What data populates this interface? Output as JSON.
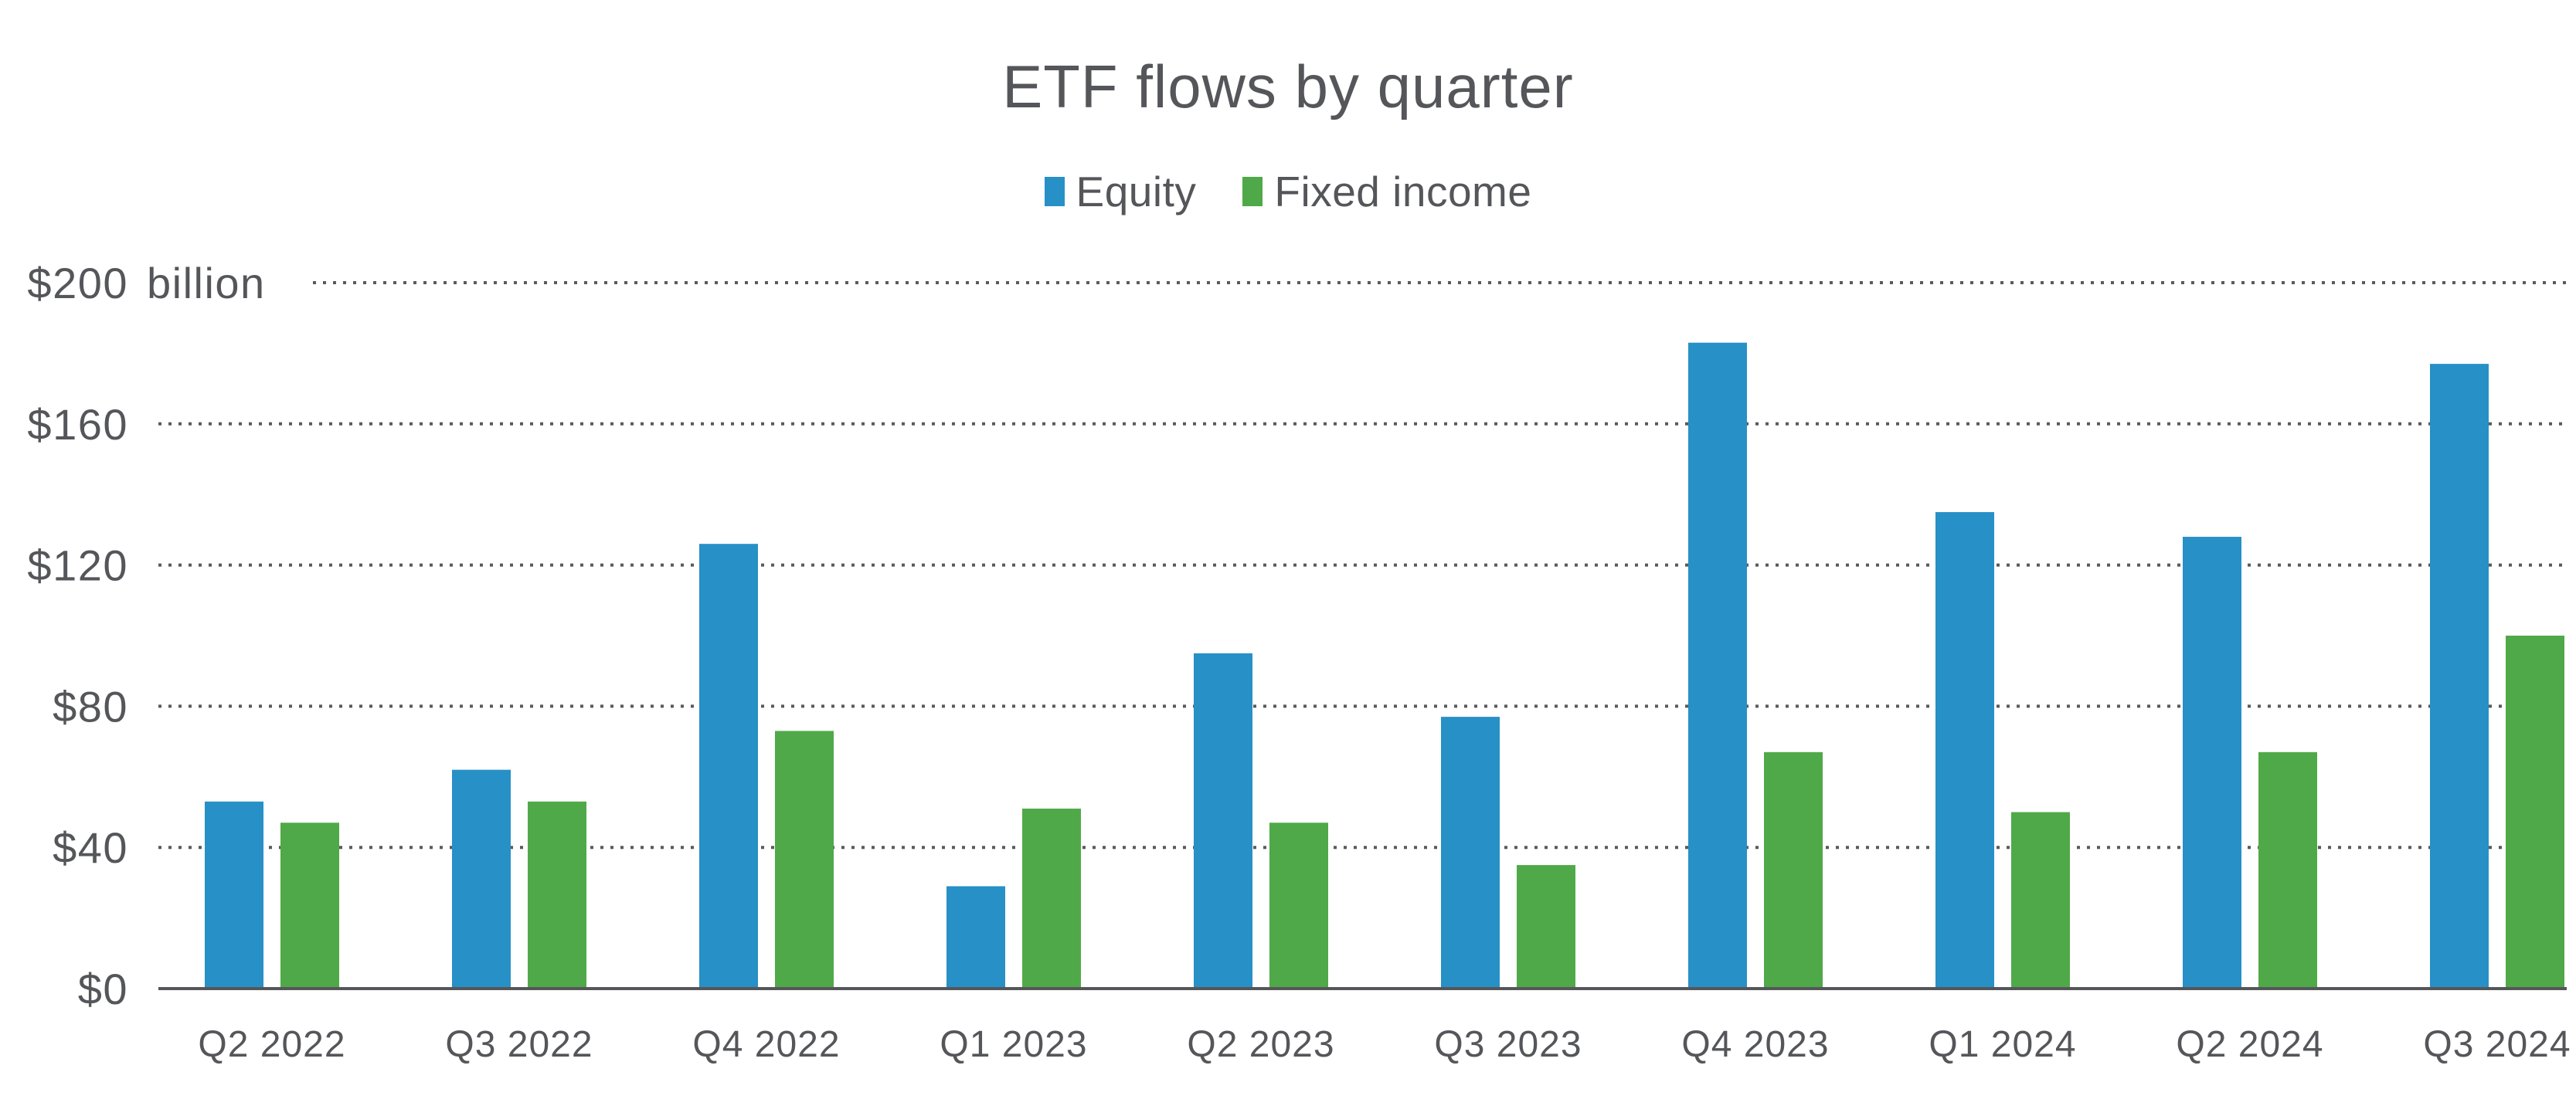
{
  "title": "ETF flows by quarter",
  "legend": [
    {
      "label": "Equity",
      "color": "#2790C6"
    },
    {
      "label": "Fixed income",
      "color": "#50A948"
    }
  ],
  "colors": {
    "equity": "#2790C6",
    "fixed_income": "#50A948",
    "text": "#55565a",
    "grid": "#595a5e"
  },
  "chart_data": {
    "type": "bar",
    "title": "ETF flows by quarter",
    "xlabel": "",
    "ylabel": "",
    "unit": "billions of US dollars",
    "ylim": [
      0,
      200
    ],
    "grid": "dotted horizontal gridlines",
    "legend_position": "top center",
    "categories": [
      "Q2 2022",
      "Q3 2022",
      "Q4 2022",
      "Q1 2023",
      "Q2 2023",
      "Q3 2023",
      "Q4 2023",
      "Q1 2024",
      "Q2 2024",
      "Q3 2024"
    ],
    "series": [
      {
        "name": "Equity",
        "color": "#2790C6",
        "values": [
          53,
          62,
          126,
          29,
          95,
          77,
          183,
          135,
          128,
          177
        ]
      },
      {
        "name": "Fixed income",
        "color": "#50A948",
        "values": [
          47,
          53,
          73,
          51,
          47,
          35,
          67,
          50,
          67,
          100
        ]
      }
    ],
    "yticks": [
      {
        "value": 0,
        "label": "$0"
      },
      {
        "value": 40,
        "label": "$40"
      },
      {
        "value": 80,
        "label": "$80"
      },
      {
        "value": 120,
        "label": "$120"
      },
      {
        "value": 160,
        "label": "$160"
      },
      {
        "value": 200,
        "label": "$200",
        "suffix": "billion"
      }
    ]
  }
}
